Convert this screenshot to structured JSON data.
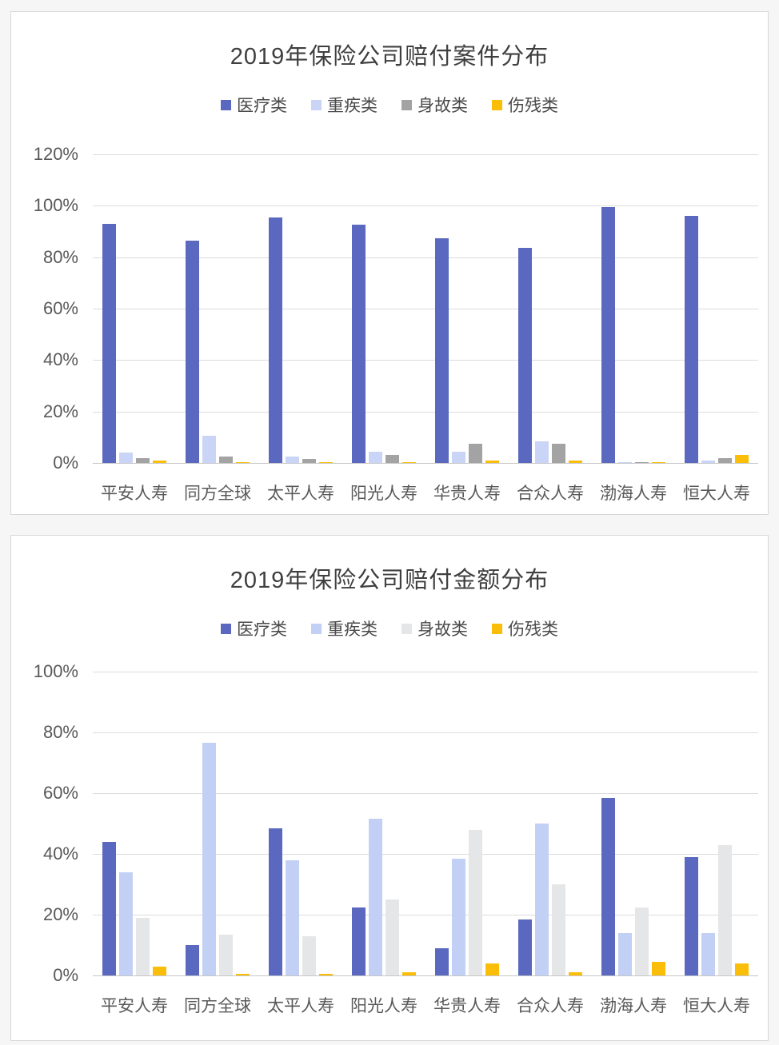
{
  "page": {
    "background": "#f6f6f6",
    "panel_background": "#ffffff",
    "panel_border": "#d8d8d8"
  },
  "chart_data": [
    {
      "type": "bar",
      "title": "2019年保险公司赔付案件分布",
      "categories": [
        "平安人寿",
        "同方全球",
        "太平人寿",
        "阳光人寿",
        "华贵人寿",
        "合众人寿",
        "渤海人寿",
        "恒大人寿"
      ],
      "series": [
        {
          "name": "医疗类",
          "color": "#5a69bf",
          "values": [
            93,
            86.5,
            95.5,
            92.5,
            87.5,
            83.5,
            99.5,
            96
          ]
        },
        {
          "name": "重疾类",
          "color": "#c9d4f7",
          "values": [
            4,
            10.5,
            2.5,
            4.5,
            4.5,
            8.5,
            0.3,
            1
          ]
        },
        {
          "name": "身故类",
          "color": "#a3a3a3",
          "values": [
            2,
            2.5,
            1.5,
            3,
            7.5,
            7.5,
            0.2,
            2
          ]
        },
        {
          "name": "伤残类",
          "color": "#fbbe08",
          "values": [
            1,
            0.2,
            0.2,
            0.2,
            0.8,
            0.8,
            0.1,
            3
          ]
        }
      ],
      "ylim": [
        0,
        120
      ],
      "yticks": [
        120,
        100,
        80,
        60,
        40,
        20,
        0
      ],
      "ytick_suffix": "%",
      "xlabel": "",
      "ylabel": "",
      "grid": true,
      "legend_position": "top"
    },
    {
      "type": "bar",
      "title": "2019年保险公司赔付金额分布",
      "categories": [
        "平安人寿",
        "同方全球",
        "太平人寿",
        "阳光人寿",
        "华贵人寿",
        "合众人寿",
        "渤海人寿",
        "恒大人寿"
      ],
      "series": [
        {
          "name": "医疗类",
          "color": "#5a69bf",
          "values": [
            44,
            10,
            48.5,
            22.5,
            9,
            18.5,
            58.5,
            39
          ]
        },
        {
          "name": "重疾类",
          "color": "#c3d0f5",
          "values": [
            34,
            76.5,
            38,
            51.5,
            38.5,
            50,
            14,
            14
          ]
        },
        {
          "name": "身故类",
          "color": "#e5e6e8",
          "values": [
            19,
            13.5,
            13,
            25,
            48,
            30,
            22.5,
            43
          ]
        },
        {
          "name": "伤残类",
          "color": "#fbbe08",
          "values": [
            3,
            0.5,
            0.5,
            1,
            4,
            1,
            4.5,
            4
          ]
        }
      ],
      "ylim": [
        0,
        100
      ],
      "yticks": [
        100,
        80,
        60,
        40,
        20,
        0
      ],
      "ytick_suffix": "%",
      "xlabel": "",
      "ylabel": "",
      "grid": true,
      "legend_position": "top"
    }
  ]
}
